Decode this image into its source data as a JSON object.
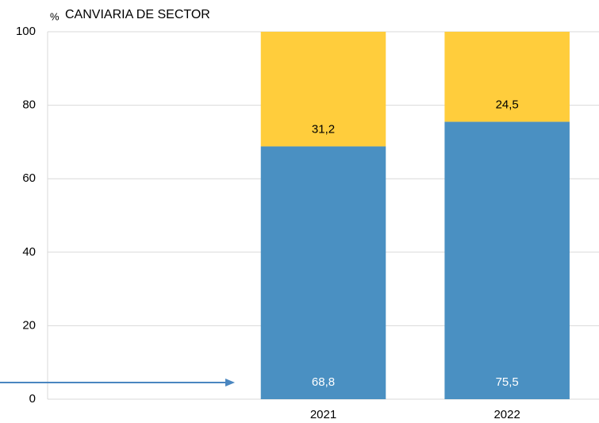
{
  "chart_data": {
    "type": "stacked_bar",
    "unit": "%",
    "title": "CANVIARIA DE SECTOR",
    "categories": [
      null,
      "2021",
      "2022"
    ],
    "series": [
      {
        "color": "#4a90c2",
        "values": [
          null,
          68.8,
          75.5
        ],
        "value_labels": [
          null,
          "68,8",
          "75,5"
        ],
        "label_color": "#ffffff"
      },
      {
        "color": "#ffcd3c",
        "values": [
          null,
          31.2,
          24.5
        ],
        "value_labels": [
          null,
          "31,2",
          "24,5"
        ],
        "label_color": "#000000"
      }
    ],
    "ylim": [
      0,
      100
    ],
    "yticks": [
      0,
      20,
      40,
      60,
      80,
      100
    ],
    "grid": true
  }
}
